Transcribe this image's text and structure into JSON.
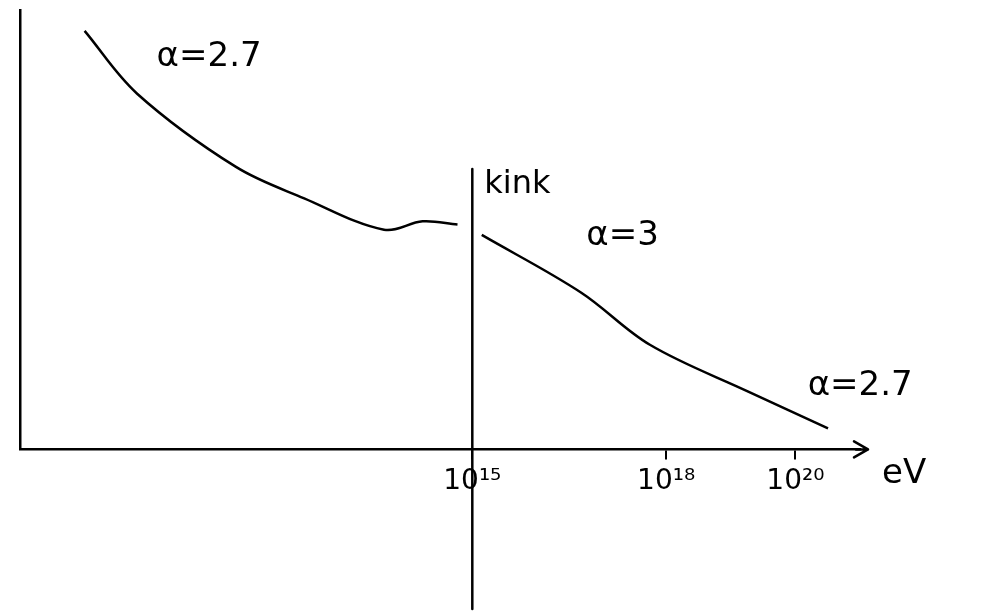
{
  "chart_data": {
    "type": "line",
    "x_label": "eV",
    "x": [
      1000000000.0,
      6500000000.0,
      220000000000.0,
      2500000000000.0,
      43000000000000.0,
      170000000000000.0,
      590000000000000.0,
      1000000000000000.0,
      1400000000000000.0,
      4.8e+16,
      5.6e+17,
      1.9e+19,
      3.2e+20
    ],
    "values": [
      100,
      85,
      67.5,
      60,
      52.5,
      54.5,
      53.75,
      null,
      51.25,
      37.5,
      25,
      13.75,
      5
    ],
    "color": "#000000",
    "log": "x",
    "grid": false,
    "tick_labels": "x",
    "xlim": [
      100000000.0,
      1e+21
    ],
    "xticks": [
      {
        "value": 1000000000000000.0,
        "label": "10¹⁵"
      },
      {
        "value": 1e+18,
        "label": "10¹⁸"
      },
      {
        "value": 1e+20,
        "label": "10²⁰"
      }
    ],
    "ylim": [
      0,
      105
    ],
    "yticks": [],
    "vertical_line": {
      "x": 1000000000000000.0,
      "y": 67,
      "label": "kink"
    },
    "annotations": [
      {
        "text": "α=2.7",
        "x": 13000000000.0,
        "y": 93.75
      },
      {
        "text": "α=3",
        "x": 5.8e+16,
        "y": 51
      },
      {
        "text": "α=2.7",
        "x": 1.55e+20,
        "y": 15
      }
    ]
  }
}
